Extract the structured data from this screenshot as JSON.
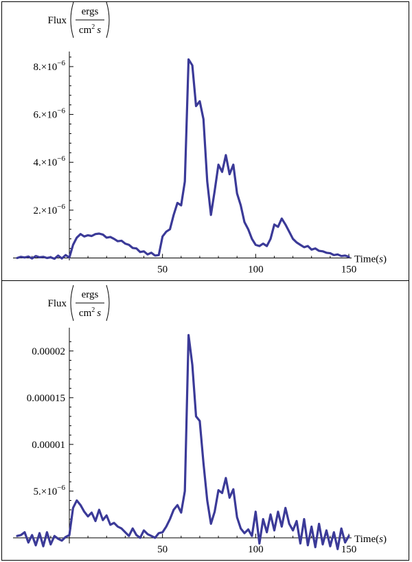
{
  "chart_data": [
    {
      "type": "line",
      "title": "",
      "xlabel": "Time(s)",
      "ylabel": "Flux(ergs / cm2 s)",
      "ylabel_parts": {
        "prefix": "Flux",
        "numerator": "ergs",
        "denominator": "cm",
        "power": "2",
        "unit": "s"
      },
      "xlabel_parts": {
        "prefix": "Time(",
        "unit": "s",
        "suffix": ")"
      },
      "xlim": [
        -28,
        150
      ],
      "ylim": [
        -1e-07,
        8.4e-06
      ],
      "x_ticks": [
        50,
        100,
        150
      ],
      "x_tick_labels": [
        "50",
        "100",
        "150"
      ],
      "y_ticks": [
        2e-06,
        4e-06,
        6e-06,
        8e-06
      ],
      "y_tick_labels": [
        {
          "mant": "2.",
          "exp": "−6"
        },
        {
          "mant": "4.",
          "exp": "−6"
        },
        {
          "mant": "6.",
          "exp": "−6"
        },
        {
          "mant": "8.",
          "exp": "−6"
        }
      ],
      "grid": false,
      "color": "#3b3a98",
      "series": [
        {
          "x": [
            -28,
            -26,
            -24,
            -22,
            -20,
            -18,
            -16,
            -14,
            -12,
            -10,
            -8,
            -6,
            -4,
            -2,
            0,
            2,
            4,
            6,
            8,
            10,
            12,
            14,
            16,
            18,
            20,
            22,
            24,
            26,
            28,
            30,
            32,
            34,
            36,
            38,
            40,
            42,
            44,
            46,
            48,
            50,
            52,
            54,
            56,
            58,
            60,
            62,
            64,
            66,
            68,
            70,
            72,
            74,
            76,
            78,
            80,
            82,
            84,
            86,
            88,
            90,
            92,
            94,
            96,
            98,
            100,
            102,
            104,
            106,
            108,
            110,
            112,
            114,
            116,
            118,
            120,
            122,
            124,
            126,
            128,
            130,
            132,
            134,
            136,
            138,
            140,
            142,
            144,
            146,
            148,
            150
          ],
          "values": [
            0.0,
            5e-08,
            2e-08,
            6e-08,
            -2e-08,
            8e-08,
            3e-08,
            5e-08,
            0.0,
            3e-08,
            -3e-08,
            1e-07,
            -2e-08,
            1.2e-07,
            2e-08,
            5.5e-07,
            8.5e-07,
            1e-06,
            9e-07,
            9.5e-07,
            9.2e-07,
            1e-06,
            1.02e-06,
            9.8e-07,
            8.5e-07,
            8.8e-07,
            8e-07,
            7e-07,
            7.2e-07,
            6e-07,
            5.5e-07,
            4.2e-07,
            4e-07,
            2.5e-07,
            2.8e-07,
            1.5e-07,
            2.2e-07,
            1e-07,
            1.2e-07,
            9e-07,
            1.1e-06,
            1.2e-06,
            1.8e-06,
            2.3e-06,
            2.2e-06,
            3.2e-06,
            8.3e-06,
            8.05e-06,
            6.35e-06,
            6.55e-06,
            5.8e-06,
            3.2e-06,
            1.8e-06,
            2.8e-06,
            3.9e-06,
            3.6e-06,
            4.3e-06,
            3.5e-06,
            3.9e-06,
            2.7e-06,
            2.2e-06,
            1.5e-06,
            1.2e-06,
            8e-07,
            5.5e-07,
            5e-07,
            6e-07,
            5e-07,
            8e-07,
            1.4e-06,
            1.3e-06,
            1.65e-06,
            1.4e-06,
            1.1e-06,
            8e-07,
            6.5e-07,
            5.5e-07,
            4.5e-07,
            5e-07,
            3.5e-07,
            4e-07,
            3e-07,
            2.8e-07,
            2.2e-07,
            2e-07,
            1.2e-07,
            1.5e-07,
            8e-08,
            1e-07,
            5e-08
          ]
        }
      ]
    },
    {
      "type": "line",
      "title": "",
      "xlabel": "Time(s)",
      "ylabel": "Flux(ergs / cm2 s)",
      "ylabel_parts": {
        "prefix": "Flux",
        "numerator": "ergs",
        "denominator": "cm",
        "power": "2",
        "unit": "s"
      },
      "xlabel_parts": {
        "prefix": "Time(",
        "unit": "s",
        "suffix": ")"
      },
      "xlim": [
        -28,
        150
      ],
      "ylim": [
        -6e-07,
        2.19e-05
      ],
      "x_ticks": [
        50,
        100,
        150
      ],
      "x_tick_labels": [
        "50",
        "100",
        "150"
      ],
      "y_ticks": [
        5e-06,
        1e-05,
        1.5e-05,
        2e-05
      ],
      "y_tick_labels": [
        {
          "mant": "5.",
          "exp": "−6"
        },
        {
          "text": "0.00001"
        },
        {
          "text": "0.000015"
        },
        {
          "text": "0.00002"
        }
      ],
      "grid": false,
      "color": "#3b3a98",
      "series": [
        {
          "x": [
            -28,
            -26,
            -24,
            -22,
            -20,
            -18,
            -16,
            -14,
            -12,
            -10,
            -8,
            -6,
            -4,
            -2,
            0,
            2,
            4,
            6,
            8,
            10,
            12,
            14,
            16,
            18,
            20,
            22,
            24,
            26,
            28,
            30,
            32,
            34,
            36,
            38,
            40,
            42,
            44,
            46,
            48,
            50,
            52,
            54,
            56,
            58,
            60,
            62,
            64,
            66,
            68,
            70,
            72,
            74,
            76,
            78,
            80,
            82,
            84,
            86,
            88,
            90,
            92,
            94,
            96,
            98,
            100,
            102,
            104,
            106,
            108,
            110,
            112,
            114,
            116,
            118,
            120,
            122,
            124,
            126,
            128,
            130,
            132,
            134,
            136,
            138,
            140,
            142,
            144,
            146,
            148,
            150
          ],
          "values": [
            2e-07,
            3e-07,
            6e-07,
            -5e-07,
            3e-07,
            -8e-07,
            5e-07,
            -9e-07,
            6e-07,
            -7e-07,
            2e-07,
            -1e-07,
            -3e-07,
            1e-07,
            3e-07,
            3.2e-06,
            4e-06,
            3.5e-06,
            2.8e-06,
            2.3e-06,
            2.7e-06,
            1.8e-06,
            3e-06,
            1.9e-06,
            2.4e-06,
            1.4e-06,
            1.6e-06,
            1.2e-06,
            1e-06,
            6e-07,
            2e-07,
            1e-06,
            3e-07,
            0.0,
            8e-07,
            4e-07,
            2e-07,
            0.0,
            5e-07,
            6e-07,
            1.2e-06,
            2e-06,
            3e-06,
            3.5e-06,
            2.7e-06,
            5e-06,
            2.17e-05,
            1.85e-05,
            1.3e-05,
            1.25e-05,
            8e-06,
            4e-06,
            1.5e-06,
            2.8e-06,
            5.1e-06,
            4.8e-06,
            6.4e-06,
            4.3e-06,
            5.2e-06,
            2.2e-06,
            1e-06,
            5e-07,
            9e-07,
            2e-07,
            2.8e-06,
            -6e-07,
            2e-06,
            6e-07,
            2.5e-06,
            8e-07,
            2.8e-06,
            1.2e-06,
            3.2e-06,
            1.5e-06,
            8e-07,
            1.8e-06,
            -6e-07,
            2e-06,
            -8e-07,
            1.2e-06,
            -1e-06,
            1.5e-06,
            -7e-07,
            8e-07,
            -9e-07,
            6e-07,
            -1.2e-06,
            1e-06,
            -5e-07,
            2e-07
          ]
        }
      ]
    }
  ]
}
